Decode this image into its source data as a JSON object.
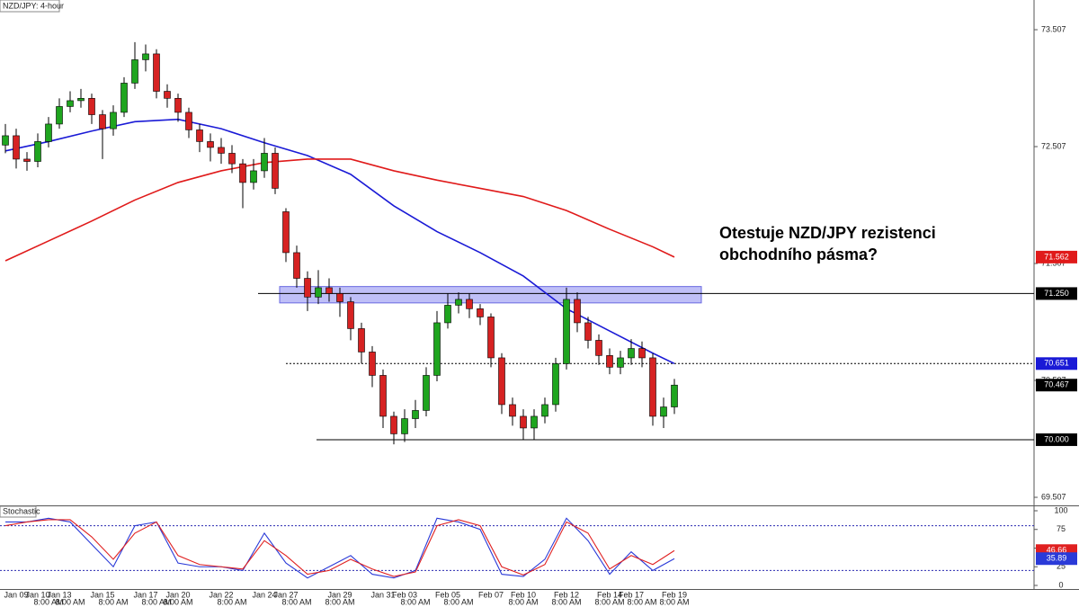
{
  "chart_data": [
    {
      "type": "candlestick",
      "title": "NZD/JPY: 4-hour",
      "annotation": [
        "Otestuje NZD/JPY rezistenci",
        "obchodního pásma?"
      ],
      "categories": [
        null,
        "Jan 09",
        null,
        "Jan 10",
        null,
        "Jan 13",
        null,
        null,
        null,
        "Jan 15",
        null,
        null,
        null,
        "Jan 17",
        null,
        null,
        "Jan 20",
        null,
        null,
        null,
        "Jan 22",
        null,
        null,
        null,
        "Jan 24",
        null,
        "Jan 27",
        null,
        null,
        null,
        null,
        "Jan 29",
        null,
        null,
        null,
        "Jan 31",
        null,
        "Feb 03",
        null,
        null,
        null,
        "Feb 05",
        null,
        null,
        null,
        "Feb 07",
        null,
        null,
        "Feb 10",
        null,
        null,
        null,
        "Feb 12",
        null,
        null,
        null,
        "Feb 14",
        null,
        "Feb 17",
        null,
        null,
        null,
        "Feb 19"
      ],
      "time_labels": [
        null,
        null,
        null,
        null,
        "8:00 AM",
        null,
        "8:00 AM",
        null,
        null,
        null,
        "8:00 AM",
        null,
        null,
        null,
        "8:00 AM",
        null,
        "8:00 AM",
        null,
        null,
        null,
        null,
        "8:00 AM",
        null,
        null,
        null,
        null,
        null,
        "8:00 AM",
        null,
        null,
        null,
        "8:00 AM",
        null,
        null,
        null,
        null,
        null,
        null,
        "8:00 AM",
        null,
        null,
        null,
        "8:00 AM",
        null,
        null,
        null,
        null,
        null,
        "8:00 AM",
        null,
        null,
        null,
        "8:00 AM",
        null,
        null,
        null,
        "8:00 AM",
        null,
        null,
        "8:00 AM",
        null,
        null,
        "8:00 AM"
      ],
      "open": [
        72.52,
        72.6,
        72.4,
        72.38,
        72.55,
        72.7,
        72.85,
        72.9,
        72.92,
        72.78,
        72.66,
        72.8,
        73.05,
        73.25,
        73.3,
        72.98,
        72.92,
        72.8,
        72.65,
        72.55,
        72.5,
        72.45,
        72.36,
        72.2,
        72.3,
        72.45,
        71.95,
        71.6,
        71.38,
        71.22,
        71.3,
        71.25,
        71.18,
        70.95,
        70.75,
        70.55,
        70.2,
        70.05,
        70.18,
        70.25,
        70.55,
        71.0,
        71.15,
        71.2,
        71.12,
        71.05,
        70.7,
        70.3,
        70.2,
        70.1,
        70.2,
        70.3,
        70.65,
        71.2,
        71.0,
        70.85,
        70.72,
        70.62,
        70.7,
        70.78,
        70.7,
        70.2,
        70.28
      ],
      "high": [
        72.7,
        72.66,
        72.46,
        72.62,
        72.76,
        72.92,
        72.98,
        73.0,
        72.96,
        72.82,
        72.86,
        73.1,
        73.4,
        73.38,
        73.34,
        73.04,
        72.96,
        72.84,
        72.7,
        72.62,
        72.58,
        72.52,
        72.4,
        72.4,
        72.58,
        72.5,
        71.98,
        71.66,
        71.44,
        71.45,
        71.38,
        71.3,
        71.22,
        71.0,
        70.8,
        70.6,
        70.24,
        70.26,
        70.34,
        70.62,
        71.1,
        71.25,
        71.26,
        71.25,
        71.16,
        71.08,
        70.74,
        70.36,
        70.26,
        70.26,
        70.36,
        70.7,
        71.3,
        71.26,
        71.05,
        70.9,
        70.78,
        70.76,
        70.86,
        70.84,
        70.74,
        70.36,
        70.52
      ],
      "low": [
        72.45,
        72.32,
        72.3,
        72.33,
        72.5,
        72.66,
        72.8,
        72.84,
        72.7,
        72.4,
        72.6,
        72.76,
        73.0,
        73.15,
        72.92,
        72.84,
        72.72,
        72.58,
        72.46,
        72.38,
        72.36,
        72.28,
        71.98,
        72.14,
        72.24,
        72.1,
        71.52,
        71.3,
        71.1,
        71.16,
        71.18,
        71.05,
        70.85,
        70.65,
        70.45,
        70.1,
        69.96,
        69.98,
        70.1,
        70.2,
        70.5,
        70.95,
        71.08,
        71.04,
        70.98,
        70.62,
        70.22,
        70.12,
        70.0,
        70.0,
        70.14,
        70.24,
        70.6,
        70.92,
        70.78,
        70.64,
        70.56,
        70.56,
        70.64,
        70.62,
        70.12,
        70.1,
        70.22
      ],
      "close": [
        72.6,
        72.4,
        72.38,
        72.55,
        72.7,
        72.85,
        72.9,
        72.92,
        72.78,
        72.66,
        72.8,
        73.05,
        73.25,
        73.3,
        72.98,
        72.92,
        72.8,
        72.65,
        72.55,
        72.5,
        72.45,
        72.36,
        72.2,
        72.3,
        72.45,
        72.15,
        71.6,
        71.38,
        71.22,
        71.3,
        71.25,
        71.18,
        70.95,
        70.75,
        70.55,
        70.2,
        70.05,
        70.18,
        70.25,
        70.55,
        71.0,
        71.15,
        71.2,
        71.12,
        71.05,
        70.7,
        70.3,
        70.2,
        70.1,
        70.2,
        70.3,
        70.65,
        71.2,
        71.0,
        70.85,
        70.72,
        70.62,
        70.7,
        70.78,
        70.7,
        70.2,
        70.28,
        70.467
      ],
      "up_color": "#1fa51f",
      "down_color": "#d62222",
      "series": [
        {
          "color": "#1a1ad6",
          "x": [
            0,
            4,
            8,
            12,
            16,
            20,
            24,
            28,
            32,
            36,
            40,
            44,
            48,
            52,
            56,
            60,
            62
          ],
          "values": [
            72.47,
            72.55,
            72.64,
            72.72,
            72.74,
            72.66,
            72.54,
            72.43,
            72.27,
            72.0,
            71.78,
            71.6,
            71.4,
            71.12,
            70.93,
            70.74,
            70.651
          ]
        },
        {
          "color": "#e01a1a",
          "x": [
            0,
            4,
            8,
            12,
            16,
            20,
            24,
            28,
            32,
            36,
            40,
            44,
            48,
            52,
            56,
            60,
            62
          ],
          "values": [
            71.53,
            71.7,
            71.87,
            72.05,
            72.2,
            72.3,
            72.37,
            72.4,
            72.4,
            72.3,
            72.22,
            72.15,
            72.08,
            71.96,
            71.8,
            71.65,
            71.562
          ]
        }
      ],
      "resistance_zone": [
        71.17,
        71.31
      ],
      "zone_color": "#8a8af0",
      "levels": [
        {
          "value": 71.25,
          "label": "71.250"
        },
        {
          "value": 70,
          "label": "70.000"
        }
      ],
      "ylim": [
        69.438,
        73.761
      ],
      "yticks": [
        69.507,
        70.507,
        71.507,
        72.507,
        73.507
      ]
    },
    {
      "type": "line",
      "title": "Stochastic",
      "series": [
        {
          "color": "#2a3ad8",
          "x": [
            0,
            2,
            4,
            6,
            8,
            10,
            12,
            14,
            16,
            18,
            20,
            22,
            24,
            26,
            28,
            30,
            32,
            34,
            36,
            38,
            40,
            42,
            44,
            46,
            48,
            50,
            52,
            54,
            56,
            58,
            60,
            62
          ],
          "values": [
            85,
            85,
            90,
            85,
            55,
            25,
            80,
            85,
            30,
            25,
            25,
            20,
            70,
            30,
            10,
            25,
            40,
            15,
            10,
            20,
            90,
            85,
            75,
            15,
            12,
            35,
            90,
            60,
            15,
            45,
            20,
            35.89
          ]
        },
        {
          "color": "#e02020",
          "x": [
            0,
            2,
            4,
            6,
            8,
            10,
            12,
            14,
            16,
            18,
            20,
            22,
            24,
            26,
            28,
            30,
            32,
            34,
            36,
            38,
            40,
            42,
            44,
            46,
            48,
            50,
            52,
            54,
            56,
            58,
            60,
            62
          ],
          "values": [
            80,
            85,
            88,
            88,
            65,
            35,
            70,
            85,
            40,
            28,
            25,
            22,
            60,
            40,
            15,
            20,
            35,
            22,
            12,
            18,
            80,
            88,
            80,
            25,
            14,
            28,
            85,
            70,
            22,
            40,
            28,
            46.66
          ]
        }
      ],
      "levels": [
        80,
        20
      ],
      "ylim": [
        -4.8,
        106
      ],
      "yticks": [
        0,
        25,
        50,
        75,
        100
      ]
    }
  ]
}
